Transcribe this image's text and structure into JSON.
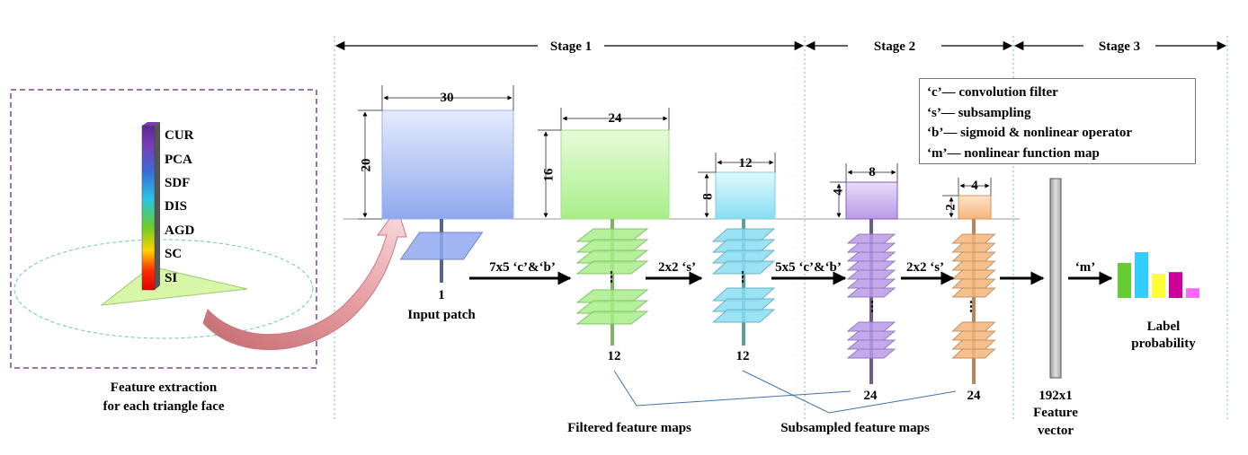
{
  "stages": [
    "Stage 1",
    "Stage 2",
    "Stage 3"
  ],
  "legend": [
    "‘c’— convolution filter",
    "‘s’— subsampling",
    "‘b’— sigmoid & nonlinear operator",
    "‘m’— nonlinear function map"
  ],
  "features": [
    "CUR",
    "PCA",
    "SDF",
    "DIS",
    "AGD",
    "SC",
    "SI"
  ],
  "feature_caption": [
    "Feature extraction",
    "for each triangle face"
  ],
  "dims": {
    "input": {
      "w": "30",
      "h": "20"
    },
    "conv1": {
      "w": "24",
      "h": "16"
    },
    "sub1": {
      "w": "12",
      "h": "8"
    },
    "conv2": {
      "w": "8",
      "h": "4"
    },
    "sub2": {
      "w": "4",
      "h": "2"
    }
  },
  "operations": [
    "7x5 ‘c’&‘b’",
    "2x2 ‘s’",
    "5x5 ‘c’&‘b’",
    "2x2 ‘s’",
    "‘m’"
  ],
  "counts": {
    "input": "1",
    "conv1": "12",
    "sub1": "12",
    "conv2": "24",
    "sub2": "24"
  },
  "ellipsis": "⋮",
  "labels": {
    "input_patch": "Input patch",
    "filtered": "Filtered feature maps",
    "subsampled": "Subsampled feature maps",
    "feature_vector": [
      "192x1",
      "Feature",
      "vector"
    ],
    "label_probability": [
      "Label",
      "probability"
    ]
  },
  "colors": {
    "input": "#8FA8EE",
    "conv1": "#A8EE88",
    "sub1": "#88DDF2",
    "conv2": "#B99AE8",
    "sub2": "#F5B57A",
    "dashed_box": "#8040A0",
    "probability_bars": [
      "#66CC33",
      "#33CCFF",
      "#FFFF33",
      "#CC0099",
      "#FF66FF"
    ]
  },
  "probability_values": [
    0.65,
    0.85,
    0.45,
    0.48,
    0.18
  ]
}
